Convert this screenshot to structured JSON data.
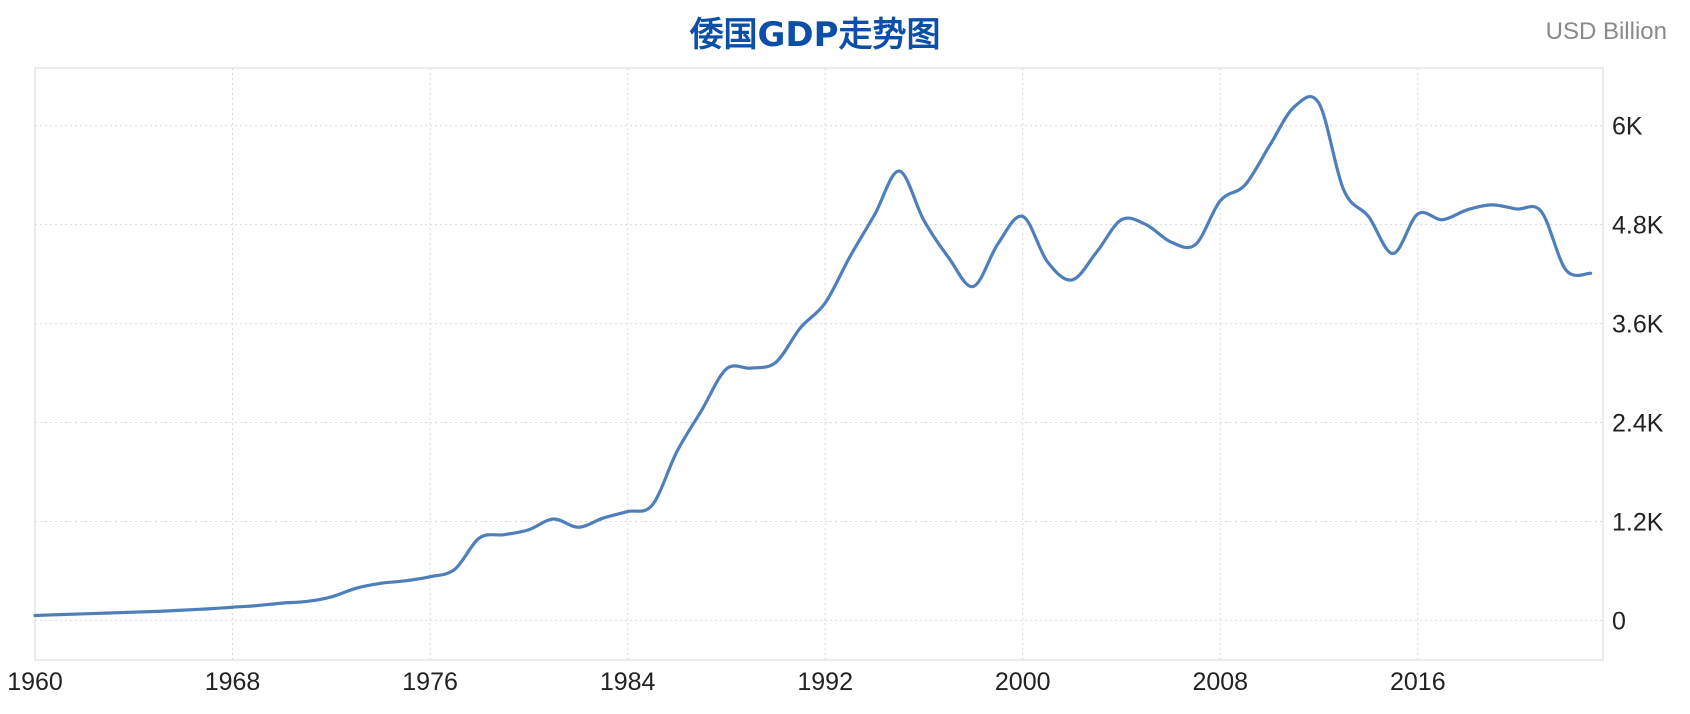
{
  "chart_data": {
    "type": "line",
    "title": "倭国GDP走势图",
    "unit_label": "USD Billion",
    "xlim": [
      1960,
      2023.5
    ],
    "ylim": [
      -480,
      6700
    ],
    "x_ticks": [
      1960,
      1968,
      1976,
      1984,
      1992,
      2000,
      2008,
      2016
    ],
    "y_ticks": [
      {
        "value": 0,
        "label": "0"
      },
      {
        "value": 1200,
        "label": "1.2K"
      },
      {
        "value": 2400,
        "label": "2.4K"
      },
      {
        "value": 3600,
        "label": "3.6K"
      },
      {
        "value": 4800,
        "label": "4.8K"
      },
      {
        "value": 6000,
        "label": "6K"
      }
    ],
    "grid": true,
    "y_axis_position": "right",
    "series": [
      {
        "color": "#4f7fbb",
        "x": [
          1960,
          1961,
          1962,
          1963,
          1964,
          1965,
          1966,
          1967,
          1968,
          1969,
          1970,
          1971,
          1972,
          1973,
          1974,
          1975,
          1976,
          1977,
          1978,
          1979,
          1980,
          1981,
          1982,
          1983,
          1984,
          1985,
          1986,
          1987,
          1988,
          1989,
          1990,
          1991,
          1992,
          1993,
          1994,
          1995,
          1996,
          1997,
          1998,
          1999,
          2000,
          2001,
          2002,
          2003,
          2004,
          2005,
          2006,
          2007,
          2008,
          2009,
          2010,
          2011,
          2012,
          2013,
          2014,
          2015,
          2016,
          2017,
          2018,
          2019,
          2020,
          2021,
          2022,
          2023
        ],
        "values": [
          60,
          70,
          80,
          90,
          100,
          110,
          125,
          140,
          160,
          180,
          210,
          230,
          285,
          390,
          450,
          480,
          530,
          620,
          1000,
          1040,
          1100,
          1230,
          1130,
          1240,
          1320,
          1400,
          2050,
          2550,
          3050,
          3060,
          3130,
          3550,
          3850,
          4410,
          4920,
          5450,
          4850,
          4400,
          4050,
          4570,
          4900,
          4350,
          4130,
          4470,
          4860,
          4800,
          4590,
          4560,
          5090,
          5280,
          5760,
          6230,
          6270,
          5220,
          4900,
          4450,
          4930,
          4860,
          4980,
          5040,
          4990,
          4960,
          4250,
          4210
        ]
      }
    ]
  }
}
